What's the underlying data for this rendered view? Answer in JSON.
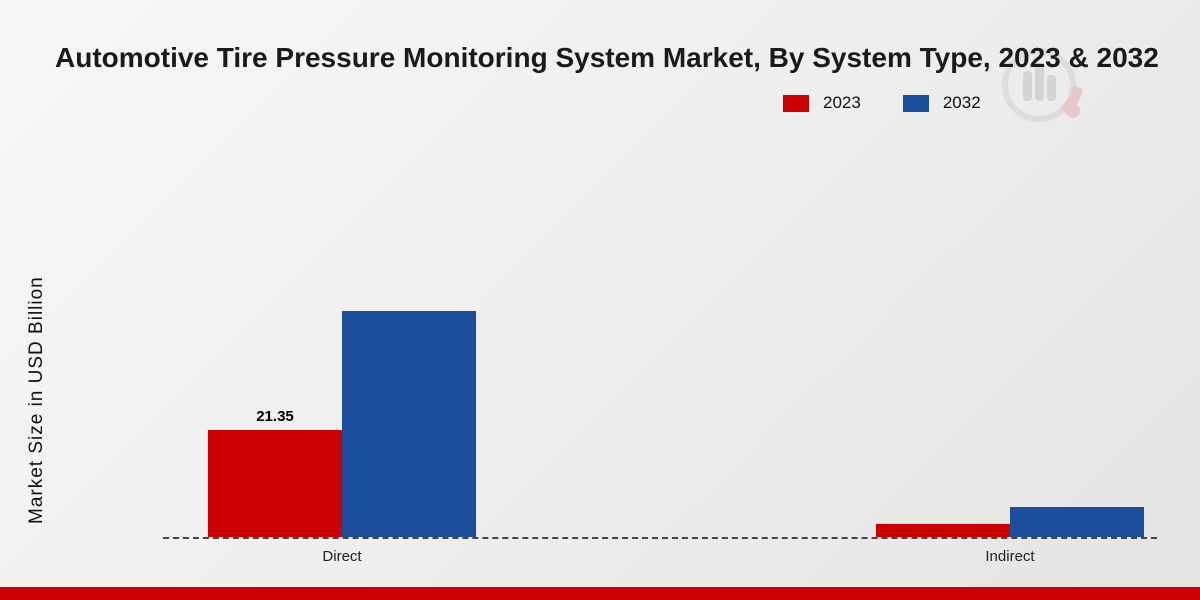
{
  "title": "Automotive Tire Pressure Monitoring System Market, By System Type, 2023 & 2032",
  "ylabel": "Market Size in USD Billion",
  "colors": {
    "red_2023": "#cc0000",
    "blue_2032": "#1b4e9b",
    "bottom_bar": "#cc0000",
    "baseline": "#444444"
  },
  "chart_data": {
    "type": "bar",
    "categories": [
      "Direct",
      "Indirect"
    ],
    "series": [
      {
        "name": "2023",
        "color": "#cc0000",
        "values": [
          21.35,
          2.6
        ]
      },
      {
        "name": "2032",
        "color": "#1b4e9b",
        "values": [
          45.2,
          6.0
        ]
      }
    ],
    "annotations": [
      {
        "series": "2023",
        "category": "Direct",
        "text": "21.35"
      }
    ],
    "title": "Automotive Tire Pressure Monitoring System Market, By System Type, 2023 & 2032",
    "xlabel": "",
    "ylabel": "Market Size in USD Billion",
    "ylim": [
      0,
      50
    ],
    "grid": false,
    "legend_position": "top-right",
    "baseline_style": "dashed"
  }
}
